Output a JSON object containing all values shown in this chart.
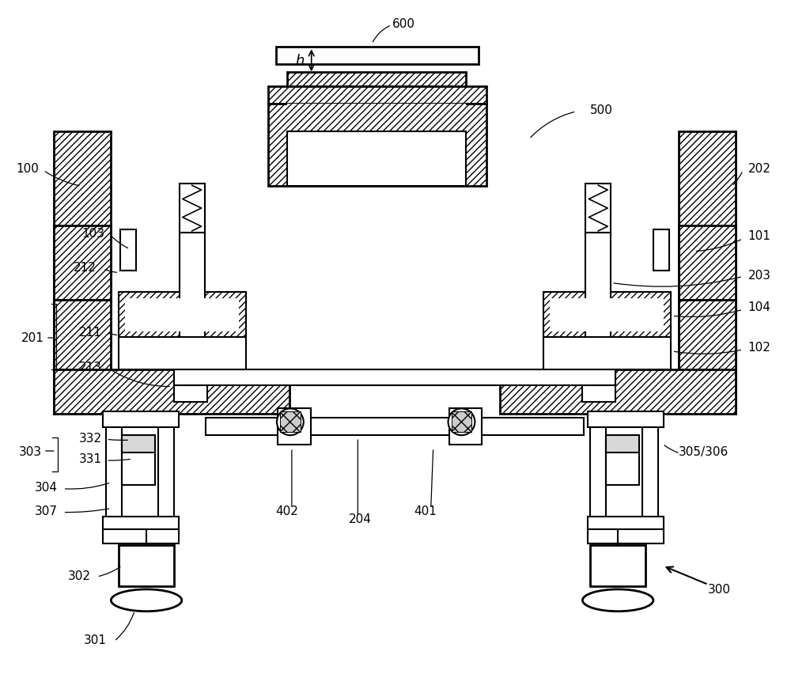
{
  "bg": "#ffffff",
  "lc": "#000000",
  "fig_w": 10.0,
  "fig_h": 8.53
}
